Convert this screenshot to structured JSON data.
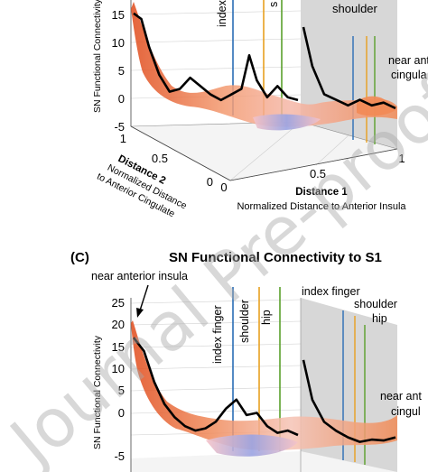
{
  "colors": {
    "connectivity_line": "#000000",
    "index_finger_line": "#2a6db5",
    "shoulder_line": "#e8a020",
    "hip_line": "#5aa02c",
    "cloud_high": "#e04a1a",
    "cloud_mid": "#f2a58a",
    "cloud_low": "#8f9be0",
    "watermark": "#a9a9a9"
  },
  "watermark": "Journal Pre-proof",
  "chart_data": [
    {
      "id": "panel-b",
      "type": "line",
      "title": "",
      "ylabel": "SN Functional Connectivity",
      "z_ticks": [
        "15",
        "10",
        "5",
        "0",
        "-5"
      ],
      "xlabel": "Distance 1",
      "xlabel_sub": "Normalized Distance to Anterior Insula",
      "x_ticks": [
        "0",
        "0.5",
        "1"
      ],
      "dlabel": "Distance 2",
      "dlabel_sub": [
        "Normalized Distance",
        "to Anterior Cingulate"
      ],
      "d_ticks": [
        "1",
        "0.5",
        "0"
      ],
      "landmarks": [
        "index",
        "s",
        "shoulder",
        "near anter",
        "cingula"
      ],
      "series": [
        {
          "x": [
            0.0,
            0.03,
            0.06,
            0.1,
            0.14,
            0.18,
            0.22,
            0.26,
            0.3,
            0.34,
            0.38,
            0.42,
            0.45,
            0.48,
            0.52,
            0.56,
            0.6,
            0.64
          ],
          "y": [
            16,
            15,
            10,
            5,
            2,
            2.5,
            4.5,
            3,
            1.5,
            0.5,
            1.5,
            2.5,
            8.5,
            4,
            1,
            3,
            1,
            0.5
          ]
        },
        {
          "x": [
            0.69,
            0.72,
            0.76,
            0.8,
            0.84,
            0.88,
            0.92,
            0.96,
            1.0
          ],
          "y": [
            15,
            8,
            3,
            2,
            1,
            2,
            1,
            1.5,
            0.5
          ]
        }
      ]
    },
    {
      "id": "panel-c",
      "type": "line",
      "panel_label": "(C)",
      "title": "SN Functional Connectivity to S1",
      "ylabel": "SN Functional Connectivity",
      "z_ticks": [
        "25",
        "20",
        "15",
        "10",
        "5",
        "0",
        "-5"
      ],
      "landmarks": [
        "near anterior insula",
        "index finger",
        "shoulder",
        "hip",
        "index finger",
        "shoulder",
        "hip",
        "near ant",
        "cingul"
      ],
      "series": [
        {
          "x": [
            0.0,
            0.04,
            0.08,
            0.12,
            0.16,
            0.2,
            0.24,
            0.28,
            0.32,
            0.36,
            0.4,
            0.44,
            0.48,
            0.52,
            0.56,
            0.6,
            0.64
          ],
          "y": [
            22,
            19,
            12,
            7,
            4,
            2,
            1,
            1.5,
            3,
            6,
            8,
            4.5,
            5,
            2,
            0.5,
            1,
            0
          ]
        },
        {
          "x": [
            0.69,
            0.72,
            0.76,
            0.8,
            0.84,
            0.88,
            0.92,
            0.96,
            1.0
          ],
          "y": [
            19,
            10,
            5,
            3,
            1.5,
            0.5,
            1,
            0.8,
            1.5
          ]
        }
      ]
    }
  ]
}
